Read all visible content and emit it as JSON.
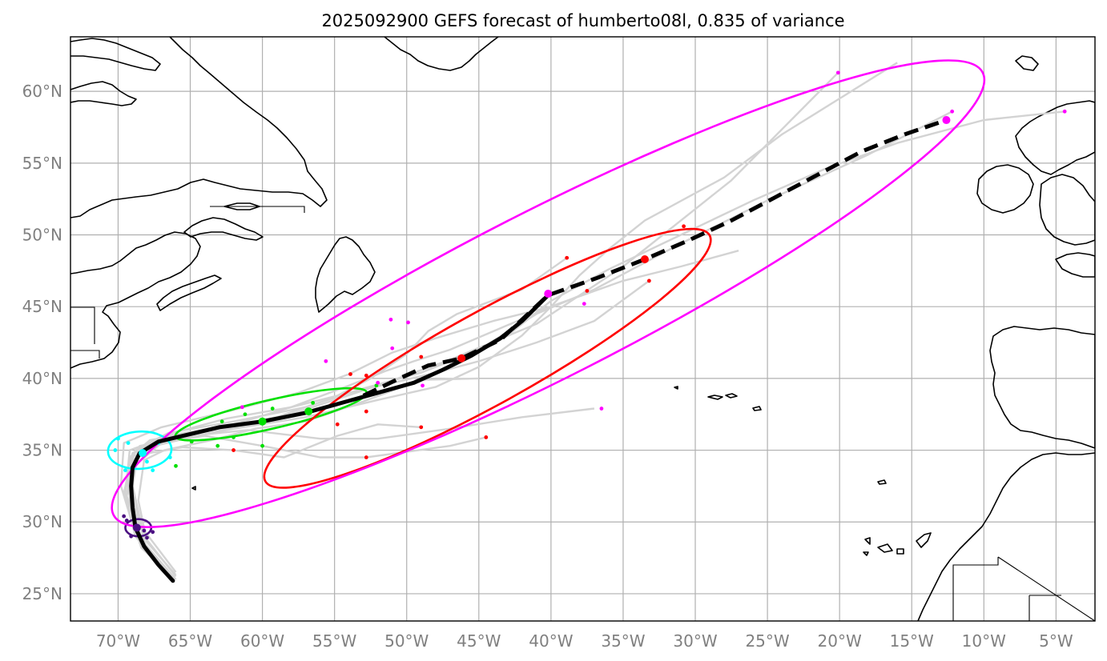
{
  "title": "2025092900 GEFS forecast of humberto08l, 0.835 of variance",
  "map": {
    "projection": "PlateCarree",
    "lon_range": [
      -73.3,
      -2.3
    ],
    "lat_range": [
      23.1,
      63.8
    ],
    "gridlines": true,
    "x_ticks": [
      -70,
      -65,
      -60,
      -55,
      -50,
      -45,
      -40,
      -35,
      -30,
      -25,
      -20,
      -15,
      -10,
      -5
    ],
    "y_ticks": [
      25,
      30,
      35,
      40,
      45,
      50,
      55,
      60
    ],
    "x_tick_labels": [
      "70°W",
      "65°W",
      "60°W",
      "55°W",
      "50°W",
      "45°W",
      "40°W",
      "35°W",
      "30°W",
      "25°W",
      "20°W",
      "15°W",
      "10°W",
      "5°W"
    ],
    "y_tick_labels": [
      "25°N",
      "30°N",
      "35°N",
      "40°N",
      "45°N",
      "50°N",
      "55°N",
      "60°N"
    ]
  },
  "colors": {
    "mean_track": "#000000",
    "members": "#d3d3d3",
    "grid": "#b0b0b0",
    "tick_labels": "#808080",
    "ellipse_purple": "#4b0f82",
    "ellipse_cyan": "#00ffff",
    "ellipse_green": "#00e000",
    "ellipse_red": "#ff0000",
    "ellipse_magenta": "#ff00ff"
  },
  "chart_data": {
    "type": "track-map",
    "mean_track_solid": [
      [
        -66.2,
        25.9
      ],
      [
        -67.2,
        27.0
      ],
      [
        -68.2,
        28.3
      ],
      [
        -68.8,
        29.6
      ],
      [
        -69.0,
        31.0
      ],
      [
        -69.1,
        32.5
      ],
      [
        -69.0,
        33.8
      ],
      [
        -68.5,
        34.8
      ],
      [
        -67.2,
        35.6
      ],
      [
        -65.5,
        36.0
      ],
      [
        -63.0,
        36.6
      ],
      [
        -60.0,
        37.0
      ],
      [
        -57.0,
        37.6
      ],
      [
        -54.5,
        38.3
      ],
      [
        -52.0,
        39.0
      ],
      [
        -49.5,
        39.7
      ],
      [
        -47.5,
        40.6
      ],
      [
        -45.5,
        41.6
      ],
      [
        -43.5,
        42.8
      ],
      [
        -42.0,
        44.0
      ],
      [
        -41.0,
        45.0
      ],
      [
        -40.2,
        45.8
      ]
    ],
    "mean_track_dashed": [
      [
        -53.0,
        38.8
      ],
      [
        -50.5,
        40.0
      ],
      [
        -48.5,
        40.9
      ],
      [
        -46.2,
        41.4
      ],
      [
        -43.5,
        42.7
      ],
      [
        -40.2,
        45.8
      ],
      [
        -36.8,
        47.0
      ],
      [
        -33.5,
        48.3
      ],
      [
        -30.5,
        49.6
      ],
      [
        -27.5,
        51.0
      ],
      [
        -24.5,
        52.6
      ],
      [
        -21.5,
        54.2
      ],
      [
        -18.5,
        55.8
      ],
      [
        -15.5,
        57.0
      ],
      [
        -12.6,
        58.0
      ]
    ],
    "mean_positions": [
      {
        "lon": -68.7,
        "lat": 29.6,
        "color": "#4b0f82"
      },
      {
        "lon": -68.3,
        "lat": 34.8,
        "color": "#00ffff"
      },
      {
        "lon": -60.0,
        "lat": 37.0,
        "color": "#00e000"
      },
      {
        "lon": -56.8,
        "lat": 37.7,
        "color": "#00e000"
      },
      {
        "lon": -46.2,
        "lat": 41.4,
        "color": "#ff0000"
      },
      {
        "lon": -33.5,
        "lat": 48.3,
        "color": "#ff0000"
      },
      {
        "lon": -40.2,
        "lat": 45.9,
        "color": "#ff00ff"
      },
      {
        "lon": -12.6,
        "lat": 58.0,
        "color": "#ff00ff"
      }
    ],
    "uncertainty_ellipses": [
      {
        "color": "#4b0f82",
        "center": [
          -68.6,
          29.6
        ],
        "semi_axes_deg": [
          0.9,
          0.6
        ],
        "rotation_deg": 0
      },
      {
        "color": "#00ffff",
        "center": [
          -68.5,
          35.0
        ],
        "semi_axes_deg": [
          2.2,
          1.3
        ],
        "rotation_deg": -3
      },
      {
        "color": "#00e000",
        "center": [
          -59.4,
          37.5
        ],
        "semi_axes_deg": [
          6.8,
          1.0
        ],
        "rotation_deg": -13
      },
      {
        "color": "#ff0000",
        "center": [
          -44.4,
          41.4
        ],
        "semi_axes_deg": [
          17.6,
          3.2
        ],
        "rotation_deg": -29
      },
      {
        "color": "#ff00ff",
        "center": [
          -40.2,
          45.9
        ],
        "semi_axes_deg": [
          33.8,
          5.8
        ],
        "rotation_deg": -27
      }
    ],
    "member_points": [
      {
        "lon": -69.6,
        "lat": 30.4,
        "color": "#4b0f82"
      },
      {
        "lon": -68.2,
        "lat": 29.4,
        "color": "#4b0f82"
      },
      {
        "lon": -67.6,
        "lat": 29.3,
        "color": "#4b0f82"
      },
      {
        "lon": -69.1,
        "lat": 29.0,
        "color": "#4b0f82"
      },
      {
        "lon": -68.0,
        "lat": 28.9,
        "color": "#4b0f82"
      },
      {
        "lon": -69.4,
        "lat": 30.1,
        "color": "#4b0f82"
      },
      {
        "lon": -70.0,
        "lat": 35.8,
        "color": "#00ffff"
      },
      {
        "lon": -69.3,
        "lat": 35.5,
        "color": "#00ffff"
      },
      {
        "lon": -67.2,
        "lat": 35.5,
        "color": "#00ffff"
      },
      {
        "lon": -69.5,
        "lat": 33.6,
        "color": "#00ffff"
      },
      {
        "lon": -67.6,
        "lat": 33.6,
        "color": "#00ffff"
      },
      {
        "lon": -66.4,
        "lat": 34.5,
        "color": "#00ffff"
      },
      {
        "lon": -70.2,
        "lat": 35.0,
        "color": "#00ffff"
      },
      {
        "lon": -68.0,
        "lat": 34.2,
        "color": "#00ffff"
      },
      {
        "lon": -66.0,
        "lat": 33.9,
        "color": "#00e000"
      },
      {
        "lon": -64.9,
        "lat": 35.6,
        "color": "#00e000"
      },
      {
        "lon": -63.1,
        "lat": 35.3,
        "color": "#00e000"
      },
      {
        "lon": -62.0,
        "lat": 35.9,
        "color": "#00e000"
      },
      {
        "lon": -62.8,
        "lat": 37.0,
        "color": "#00e000"
      },
      {
        "lon": -61.2,
        "lat": 37.5,
        "color": "#00e000"
      },
      {
        "lon": -59.3,
        "lat": 37.9,
        "color": "#00e000"
      },
      {
        "lon": -60.0,
        "lat": 35.3,
        "color": "#00e000"
      },
      {
        "lon": -56.5,
        "lat": 38.3,
        "color": "#00e000"
      },
      {
        "lon": -52.1,
        "lat": 39.5,
        "color": "#00e000"
      },
      {
        "lon": -61.4,
        "lat": 38.0,
        "color": "#ff00ff"
      },
      {
        "lon": -62.0,
        "lat": 35.0,
        "color": "#ff0000"
      },
      {
        "lon": -54.8,
        "lat": 36.8,
        "color": "#ff0000"
      },
      {
        "lon": -52.8,
        "lat": 34.5,
        "color": "#ff0000"
      },
      {
        "lon": -53.9,
        "lat": 40.3,
        "color": "#ff0000"
      },
      {
        "lon": -52.8,
        "lat": 37.7,
        "color": "#ff0000"
      },
      {
        "lon": -52.8,
        "lat": 40.2,
        "color": "#ff0000"
      },
      {
        "lon": -49.0,
        "lat": 36.6,
        "color": "#ff0000"
      },
      {
        "lon": -49.0,
        "lat": 41.5,
        "color": "#ff0000"
      },
      {
        "lon": -44.5,
        "lat": 35.9,
        "color": "#ff0000"
      },
      {
        "lon": -38.9,
        "lat": 48.4,
        "color": "#ff0000"
      },
      {
        "lon": -37.5,
        "lat": 46.1,
        "color": "#ff0000"
      },
      {
        "lon": -33.2,
        "lat": 46.8,
        "color": "#ff0000"
      },
      {
        "lon": -30.8,
        "lat": 50.6,
        "color": "#ff0000"
      },
      {
        "lon": -55.6,
        "lat": 41.2,
        "color": "#ff00ff"
      },
      {
        "lon": -51.1,
        "lat": 44.1,
        "color": "#ff00ff"
      },
      {
        "lon": -49.9,
        "lat": 43.9,
        "color": "#ff00ff"
      },
      {
        "lon": -51.0,
        "lat": 42.1,
        "color": "#ff00ff"
      },
      {
        "lon": -52.0,
        "lat": 39.7,
        "color": "#ff00ff"
      },
      {
        "lon": -48.9,
        "lat": 39.5,
        "color": "#ff00ff"
      },
      {
        "lon": -37.7,
        "lat": 45.2,
        "color": "#ff00ff"
      },
      {
        "lon": -36.5,
        "lat": 37.9,
        "color": "#ff00ff"
      },
      {
        "lon": -20.1,
        "lat": 61.3,
        "color": "#ff00ff"
      },
      {
        "lon": -12.2,
        "lat": 58.6,
        "color": "#ff00ff"
      },
      {
        "lon": -4.4,
        "lat": 58.6,
        "color": "#ff00ff"
      }
    ],
    "member_tracks": [
      [
        [
          -66.2,
          25.9
        ],
        [
          -68.0,
          28.0
        ],
        [
          -69.0,
          30.5
        ],
        [
          -69.4,
          33.0
        ],
        [
          -68.8,
          35.0
        ],
        [
          -66.5,
          36.2
        ],
        [
          -62.0,
          37.0
        ],
        [
          -57.0,
          38.0
        ],
        [
          -53.0,
          39.3
        ],
        [
          -49.0,
          40.4
        ],
        [
          -45.0,
          42.0
        ],
        [
          -41.0,
          44.5
        ],
        [
          -37.0,
          46.2
        ],
        [
          -31.0,
          49.4
        ],
        [
          -25.0,
          52.4
        ],
        [
          -18.0,
          55.6
        ],
        [
          -12.2,
          58.6
        ]
      ],
      [
        [
          -66.2,
          25.9
        ],
        [
          -68.5,
          28.5
        ],
        [
          -69.2,
          31.5
        ],
        [
          -69.3,
          34.0
        ],
        [
          -67.5,
          35.5
        ],
        [
          -63.0,
          36.5
        ],
        [
          -58.0,
          37.5
        ],
        [
          -52.0,
          39.5
        ],
        [
          -47.0,
          41.3
        ],
        [
          -41.0,
          43.8
        ],
        [
          -35.0,
          47.8
        ],
        [
          -27.5,
          53.8
        ],
        [
          -20.1,
          61.3
        ]
      ],
      [
        [
          -66.2,
          25.9
        ],
        [
          -68.8,
          29.0
        ],
        [
          -69.6,
          32.0
        ],
        [
          -69.0,
          34.8
        ],
        [
          -66.0,
          35.9
        ],
        [
          -61.0,
          36.4
        ],
        [
          -56.0,
          35.8
        ],
        [
          -52.0,
          35.8
        ],
        [
          -47.0,
          36.5
        ],
        [
          -42.0,
          37.3
        ],
        [
          -37.0,
          37.9
        ]
      ],
      [
        [
          -66.0,
          26.5
        ],
        [
          -68.5,
          29.8
        ],
        [
          -69.3,
          33.0
        ],
        [
          -68.5,
          35.3
        ],
        [
          -64.0,
          36.0
        ],
        [
          -60.0,
          35.3
        ],
        [
          -56.0,
          34.5
        ],
        [
          -52.8,
          34.5
        ],
        [
          -47.0,
          35.3
        ],
        [
          -44.5,
          35.9
        ]
      ],
      [
        [
          -66.2,
          25.9
        ],
        [
          -68.9,
          29.5
        ],
        [
          -69.8,
          32.5
        ],
        [
          -69.6,
          35.5
        ],
        [
          -67.0,
          36.6
        ],
        [
          -62.0,
          37.8
        ],
        [
          -57.5,
          39.0
        ],
        [
          -54.0,
          40.3
        ],
        [
          -51.0,
          41.8
        ],
        [
          -48.0,
          42.8
        ],
        [
          -44.0,
          44.0
        ],
        [
          -40.0,
          45.0
        ],
        [
          -37.0,
          46.1
        ]
      ],
      [
        [
          -66.2,
          25.9
        ],
        [
          -68.3,
          28.4
        ],
        [
          -69.1,
          31.0
        ],
        [
          -69.2,
          34.5
        ],
        [
          -67.8,
          35.7
        ],
        [
          -64.0,
          36.4
        ],
        [
          -59.0,
          37.3
        ],
        [
          -55.0,
          38.7
        ],
        [
          -52.5,
          40.0
        ],
        [
          -50.0,
          41.7
        ],
        [
          -48.5,
          43.3
        ],
        [
          -46.5,
          44.5
        ],
        [
          -42.0,
          46.2
        ],
        [
          -38.9,
          48.4
        ]
      ],
      [
        [
          -66.0,
          26.2
        ],
        [
          -68.2,
          29.0
        ],
        [
          -69.0,
          32.5
        ],
        [
          -68.6,
          35.0
        ],
        [
          -66.2,
          36.2
        ],
        [
          -62.5,
          37.2
        ],
        [
          -58.0,
          38.0
        ],
        [
          -54.0,
          39.0
        ],
        [
          -50.5,
          39.8
        ],
        [
          -48.0,
          40.4
        ],
        [
          -45.0,
          41.2
        ],
        [
          -41.0,
          42.5
        ],
        [
          -37.0,
          44.0
        ],
        [
          -33.2,
          46.8
        ]
      ],
      [
        [
          -66.0,
          26.0
        ],
        [
          -68.4,
          28.2
        ],
        [
          -69.4,
          31.8
        ],
        [
          -69.0,
          34.6
        ],
        [
          -65.5,
          35.2
        ],
        [
          -62.0,
          35.0
        ],
        [
          -58.5,
          34.5
        ],
        [
          -54.8,
          36.0
        ],
        [
          -52.0,
          36.8
        ],
        [
          -49.0,
          36.6
        ]
      ],
      [
        [
          -66.0,
          26.3
        ],
        [
          -68.0,
          28.6
        ],
        [
          -68.6,
          31.5
        ],
        [
          -68.2,
          34.3
        ],
        [
          -66.8,
          35.0
        ],
        [
          -63.5,
          35.7
        ],
        [
          -60.5,
          36.5
        ],
        [
          -57.0,
          37.0
        ],
        [
          -53.0,
          38.4
        ],
        [
          -49.0,
          39.9
        ],
        [
          -45.0,
          40.0
        ]
      ],
      [
        [
          -66.0,
          26.0
        ],
        [
          -68.6,
          29.0
        ],
        [
          -69.5,
          32.0
        ],
        [
          -69.2,
          35.0
        ],
        [
          -66.5,
          36.0
        ],
        [
          -62.0,
          36.8
        ],
        [
          -58.0,
          38.0
        ],
        [
          -54.0,
          39.5
        ],
        [
          -51.5,
          40.5
        ],
        [
          -49.5,
          41.2
        ],
        [
          -47.0,
          42.0
        ],
        [
          -43.5,
          43.5
        ],
        [
          -39.5,
          45.2
        ],
        [
          -35.0,
          46.8
        ],
        [
          -31.0,
          47.8
        ],
        [
          -27.0,
          48.9
        ]
      ],
      [
        [
          -66.2,
          25.9
        ],
        [
          -68.4,
          28.8
        ],
        [
          -69.0,
          31.2
        ],
        [
          -69.0,
          33.8
        ],
        [
          -67.0,
          35.5
        ],
        [
          -62.0,
          36.5
        ],
        [
          -57.0,
          37.3
        ],
        [
          -52.0,
          38.5
        ],
        [
          -48.0,
          39.4
        ],
        [
          -45.0,
          40.8
        ],
        [
          -42.0,
          43.0
        ],
        [
          -40.0,
          45.0
        ],
        [
          -38.0,
          47.2
        ],
        [
          -36.0,
          49.0
        ],
        [
          -33.5,
          51.0
        ],
        [
          -28.0,
          54.0
        ],
        [
          -24.0,
          57.0
        ],
        [
          -20.0,
          59.5
        ],
        [
          -16.0,
          62.0
        ]
      ],
      [
        [
          -66.2,
          25.9
        ],
        [
          -68.1,
          28.4
        ],
        [
          -68.9,
          31.4
        ],
        [
          -69.1,
          34.2
        ],
        [
          -67.5,
          35.3
        ],
        [
          -64.5,
          36.0
        ],
        [
          -61.0,
          36.8
        ],
        [
          -57.0,
          37.6
        ],
        [
          -53.5,
          38.6
        ],
        [
          -50.0,
          39.6
        ],
        [
          -46.5,
          41.0
        ],
        [
          -43.0,
          43.0
        ],
        [
          -40.0,
          45.4
        ],
        [
          -36.0,
          47.6
        ],
        [
          -31.0,
          50.0
        ],
        [
          -26.0,
          52.4
        ],
        [
          -21.0,
          54.6
        ],
        [
          -16.0,
          56.4
        ],
        [
          -10.0,
          58.0
        ],
        [
          -4.4,
          58.6
        ]
      ]
    ]
  }
}
